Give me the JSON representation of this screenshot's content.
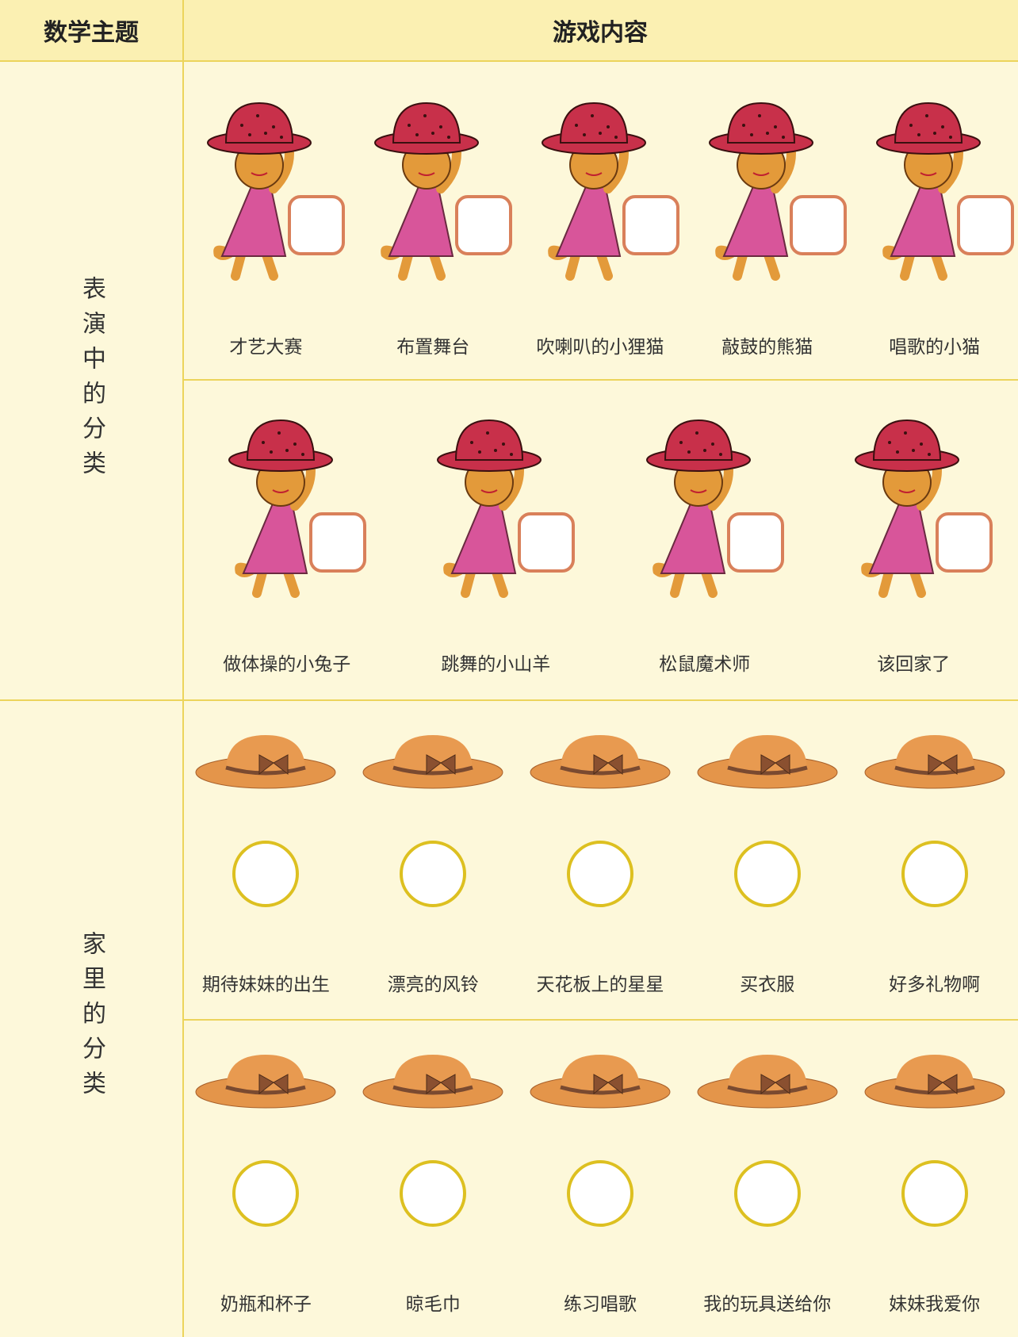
{
  "header": {
    "col1": "数学主题",
    "col2": "游戏内容"
  },
  "sections": [
    {
      "topic": "表演中的分类",
      "rows": [
        [
          "才艺大赛",
          "布置舞台",
          "吹喇叭的小狸猫",
          "敲鼓的熊猫",
          "唱歌的小猫"
        ],
        [
          "做体操的小兔子",
          "跳舞的小山羊",
          "松鼠魔术师",
          "该回家了"
        ]
      ]
    },
    {
      "topic": "家里的分类",
      "rows": [
        [
          "期待妹妹的出生",
          "漂亮的风铃",
          "天花板上的星星",
          "买衣服",
          "好多礼物啊"
        ],
        [
          "奶瓶和杯子",
          "晾毛巾",
          "练习唱歌",
          "我的玩具送给你",
          "妹妹我爱你"
        ]
      ]
    }
  ]
}
